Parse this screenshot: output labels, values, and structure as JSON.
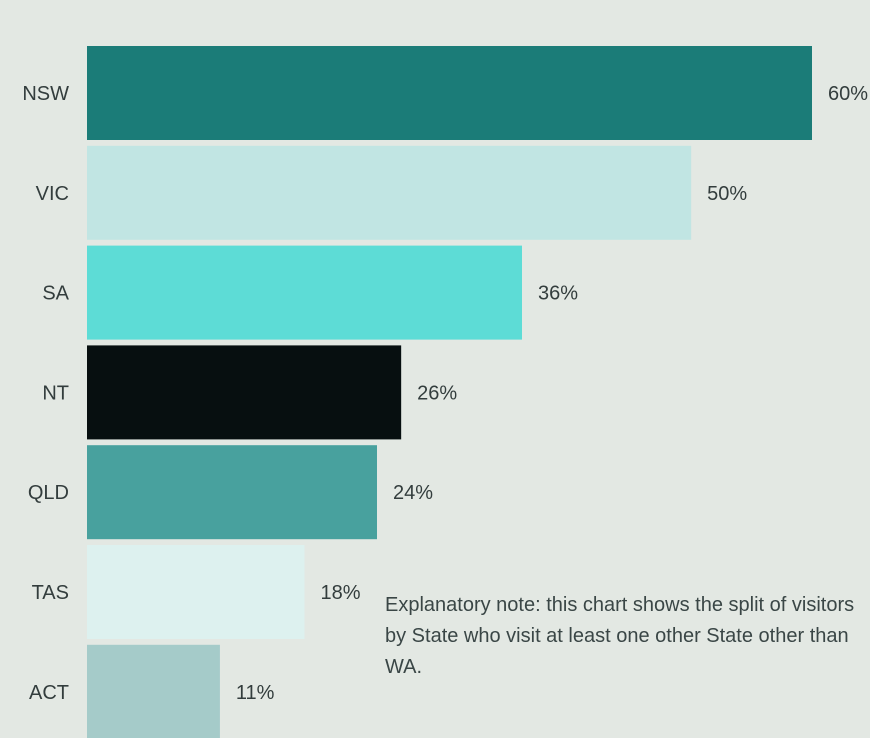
{
  "chart_data": {
    "type": "bar",
    "orientation": "horizontal",
    "categories": [
      "NSW",
      "VIC",
      "SA",
      "NT",
      "QLD",
      "TAS",
      "ACT"
    ],
    "values": [
      60,
      50,
      36,
      26,
      24,
      18,
      11
    ],
    "value_labels": [
      "60%",
      "50%",
      "36%",
      "26%",
      "24%",
      "18%",
      "11%"
    ],
    "bar_colors": [
      "#1b7c78",
      "#c1e5e3",
      "#5ddcd6",
      "#070f10",
      "#48a19e",
      "#ddf1ef",
      "#a5cbc9"
    ],
    "xlim": [
      0,
      60
    ],
    "grid": false,
    "legend": "none"
  },
  "note": {
    "text": "Explanatory note: this chart shows the split of visitors by State who visit at least one other State other than WA."
  }
}
